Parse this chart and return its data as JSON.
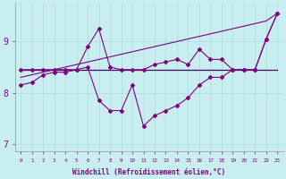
{
  "xlabel": "Windchill (Refroidissement éolien,°C)",
  "background_color": "#c8eef0",
  "line_color": "#800080",
  "flat_line_color": "#400060",
  "xlim": [
    -0.5,
    23.5
  ],
  "ylim": [
    6.85,
    9.75
  ],
  "yticks": [
    7,
    8,
    9
  ],
  "xticks": [
    0,
    1,
    2,
    3,
    4,
    5,
    6,
    7,
    8,
    9,
    10,
    11,
    12,
    13,
    14,
    15,
    16,
    17,
    18,
    19,
    20,
    21,
    22,
    23
  ],
  "hours": [
    0,
    1,
    2,
    3,
    4,
    5,
    6,
    7,
    8,
    9,
    10,
    11,
    12,
    13,
    14,
    15,
    16,
    17,
    18,
    19,
    20,
    21,
    22,
    23
  ],
  "line_flat": [
    8.45,
    8.45,
    8.45,
    8.45,
    8.45,
    8.45,
    8.45,
    8.45,
    8.45,
    8.45,
    8.45,
    8.45,
    8.45,
    8.45,
    8.45,
    8.45,
    8.45,
    8.45,
    8.45,
    8.45,
    8.45,
    8.45,
    8.45,
    8.45
  ],
  "line_diag": [
    8.3,
    8.35,
    8.4,
    8.45,
    8.5,
    8.55,
    8.6,
    8.65,
    8.7,
    8.75,
    8.8,
    8.85,
    8.9,
    8.95,
    9.0,
    9.05,
    9.1,
    9.15,
    9.2,
    9.25,
    9.3,
    9.35,
    9.4,
    9.55
  ],
  "line_upper": [
    8.45,
    8.45,
    8.45,
    8.45,
    8.45,
    8.45,
    8.9,
    9.25,
    8.5,
    8.45,
    8.45,
    8.45,
    8.55,
    8.6,
    8.65,
    8.55,
    8.85,
    8.65,
    8.65,
    8.45,
    8.45,
    8.45,
    9.05,
    9.55
  ],
  "line_lower": [
    8.15,
    8.2,
    8.35,
    8.4,
    8.4,
    8.45,
    8.5,
    7.85,
    7.65,
    7.65,
    8.15,
    7.35,
    7.55,
    7.65,
    7.75,
    7.9,
    8.15,
    8.3,
    8.3,
    8.45,
    8.45,
    8.45,
    9.05,
    9.55
  ]
}
